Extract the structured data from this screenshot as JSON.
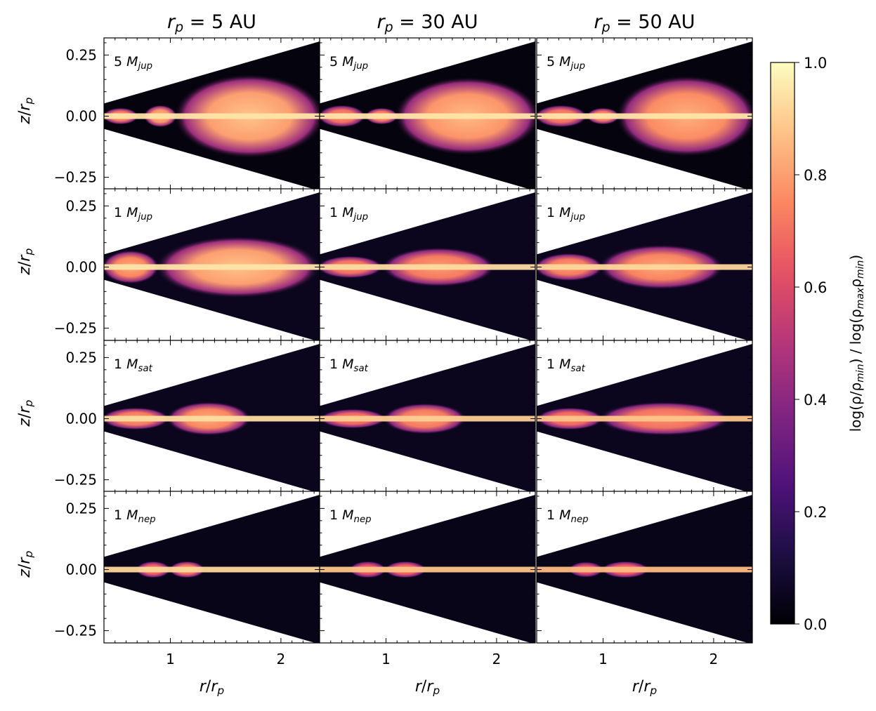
{
  "chart_data": {
    "type": "heatmap",
    "layout": {
      "rows": 4,
      "cols": 3
    },
    "column_titles": [
      {
        "base": "r",
        "sub": "p",
        "rest": " = 5 AU"
      },
      {
        "base": "r",
        "sub": "p",
        "rest": " = 30 AU"
      },
      {
        "base": "r",
        "sub": "p",
        "rest": " = 50 AU"
      }
    ],
    "row_labels": [
      {
        "num": "5",
        "base": "M",
        "sub": "jup"
      },
      {
        "num": "1",
        "base": "M",
        "sub": "jup"
      },
      {
        "num": "1",
        "base": "M",
        "sub": "sat"
      },
      {
        "num": "1",
        "base": "M",
        "sub": "nep"
      }
    ],
    "xlabel": {
      "base": "r",
      "sep": "/",
      "base2": "r",
      "sub2": "p"
    },
    "ylabel": {
      "base": "z",
      "sep": "/",
      "base2": "r",
      "sub2": "p"
    },
    "xlim": [
      0.4,
      2.35
    ],
    "ylim": [
      -0.3,
      0.32
    ],
    "x_ticks": [
      1,
      2
    ],
    "x_tick_labels": [
      "1",
      "2"
    ],
    "y_ticks": [
      0.25,
      0.0,
      -0.25
    ],
    "y_tick_labels": [
      "0.25",
      "0.00",
      "−0.25"
    ],
    "wedge_slope": 0.13,
    "colorbar": {
      "label": "log(ρ/ρmin) / log(ρmaxρmin)",
      "label_parts": [
        {
          "t": "log(ρ/ρ",
          "s": false
        },
        {
          "t": "min",
          "s": true
        },
        {
          "t": ") / log(ρ",
          "s": false
        },
        {
          "t": "max",
          "s": true
        },
        {
          "t": "ρ",
          "s": false
        },
        {
          "t": "min",
          "s": true
        },
        {
          "t": ")",
          "s": false
        }
      ],
      "range": [
        0.0,
        1.0
      ],
      "ticks": [
        0.0,
        0.2,
        0.4,
        0.6,
        0.8,
        1.0
      ],
      "tick_labels": [
        "0.0",
        "0.2",
        "0.4",
        "0.6",
        "0.8",
        "1.0"
      ],
      "colormap": "magma",
      "stops": [
        "#000004",
        "#1c1044",
        "#4f127b",
        "#812581",
        "#b5367a",
        "#e55064",
        "#fb8761",
        "#fec287",
        "#fcfdbf"
      ]
    },
    "panels": [
      {
        "row": 0,
        "col": 0,
        "background": 0.02,
        "midplane": 0.95,
        "lobes": [
          {
            "x0": 0.4,
            "x1": 0.7,
            "h": 0.03,
            "v": 0.72
          },
          {
            "x0": 0.77,
            "x1": 1.05,
            "h": 0.04,
            "v": 0.78
          },
          {
            "x0": 1.08,
            "x1": 2.35,
            "h": 0.15,
            "v": 0.8
          }
        ]
      },
      {
        "row": 0,
        "col": 1,
        "background": 0.02,
        "midplane": 0.95,
        "lobes": [
          {
            "x0": 0.4,
            "x1": 0.8,
            "h": 0.04,
            "v": 0.7
          },
          {
            "x0": 0.82,
            "x1": 1.1,
            "h": 0.03,
            "v": 0.72
          },
          {
            "x0": 1.12,
            "x1": 2.35,
            "h": 0.14,
            "v": 0.78
          }
        ]
      },
      {
        "row": 0,
        "col": 2,
        "background": 0.02,
        "midplane": 0.95,
        "lobes": [
          {
            "x0": 0.4,
            "x1": 0.84,
            "h": 0.04,
            "v": 0.7
          },
          {
            "x0": 0.86,
            "x1": 1.14,
            "h": 0.03,
            "v": 0.72
          },
          {
            "x0": 1.16,
            "x1": 2.35,
            "h": 0.145,
            "v": 0.76
          }
        ]
      },
      {
        "row": 1,
        "col": 0,
        "background": 0.05,
        "midplane": 0.95,
        "lobes": [
          {
            "x0": 0.4,
            "x1": 0.88,
            "h": 0.06,
            "v": 0.75
          },
          {
            "x0": 0.92,
            "x1": 2.3,
            "h": 0.11,
            "v": 0.8
          }
        ]
      },
      {
        "row": 1,
        "col": 1,
        "background": 0.05,
        "midplane": 0.93,
        "lobes": [
          {
            "x0": 0.4,
            "x1": 0.95,
            "h": 0.04,
            "v": 0.7
          },
          {
            "x0": 1.0,
            "x1": 1.95,
            "h": 0.07,
            "v": 0.72
          }
        ]
      },
      {
        "row": 1,
        "col": 2,
        "background": 0.05,
        "midplane": 0.92,
        "lobes": [
          {
            "x0": 0.4,
            "x1": 0.98,
            "h": 0.05,
            "v": 0.72
          },
          {
            "x0": 1.0,
            "x1": 2.05,
            "h": 0.08,
            "v": 0.74
          }
        ]
      },
      {
        "row": 2,
        "col": 0,
        "background": 0.05,
        "midplane": 0.93,
        "lobes": [
          {
            "x0": 0.4,
            "x1": 0.97,
            "h": 0.04,
            "v": 0.72
          },
          {
            "x0": 0.99,
            "x1": 1.7,
            "h": 0.06,
            "v": 0.75
          }
        ]
      },
      {
        "row": 2,
        "col": 1,
        "background": 0.05,
        "midplane": 0.9,
        "lobes": [
          {
            "x0": 0.42,
            "x1": 0.98,
            "h": 0.035,
            "v": 0.68
          },
          {
            "x0": 1.0,
            "x1": 1.7,
            "h": 0.055,
            "v": 0.72
          }
        ]
      },
      {
        "row": 2,
        "col": 2,
        "background": 0.05,
        "midplane": 0.88,
        "lobes": [
          {
            "x0": 0.42,
            "x1": 0.98,
            "h": 0.04,
            "v": 0.68
          },
          {
            "x0": 1.0,
            "x1": 2.1,
            "h": 0.06,
            "v": 0.7
          }
        ]
      },
      {
        "row": 3,
        "col": 0,
        "background": 0.04,
        "midplane": 0.92,
        "lobes": [
          {
            "x0": 0.7,
            "x1": 0.99,
            "h": 0.03,
            "v": 0.66
          },
          {
            "x0": 1.0,
            "x1": 1.3,
            "h": 0.03,
            "v": 0.7
          }
        ]
      },
      {
        "row": 3,
        "col": 1,
        "background": 0.04,
        "midplane": 0.88,
        "lobes": [
          {
            "x0": 0.68,
            "x1": 0.99,
            "h": 0.03,
            "v": 0.62
          },
          {
            "x0": 1.0,
            "x1": 1.35,
            "h": 0.03,
            "v": 0.66
          }
        ]
      },
      {
        "row": 3,
        "col": 2,
        "background": 0.04,
        "midplane": 0.86,
        "lobes": [
          {
            "x0": 0.7,
            "x1": 0.99,
            "h": 0.028,
            "v": 0.6
          },
          {
            "x0": 1.0,
            "x1": 1.4,
            "h": 0.03,
            "v": 0.64
          }
        ]
      }
    ]
  }
}
